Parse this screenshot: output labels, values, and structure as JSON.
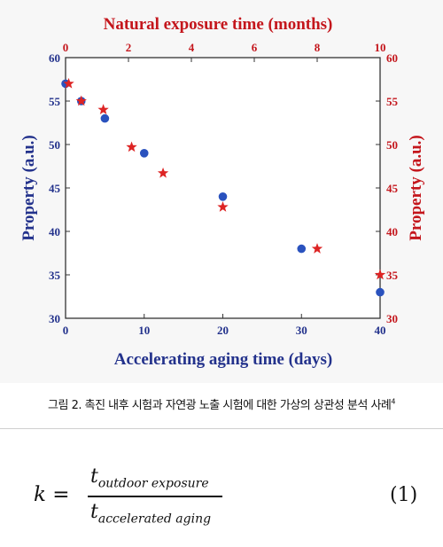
{
  "chart_data": {
    "type": "scatter",
    "title": "Natural exposure time (months)",
    "xlabel": "Accelerating aging time (days)",
    "ylabel": "Property (a.u.)",
    "y2label": "Property (a.u.)",
    "xlim": [
      0,
      40
    ],
    "ylim": [
      30,
      60
    ],
    "x2lim": [
      0,
      10
    ],
    "x_ticks": [
      "0",
      "10",
      "20",
      "30",
      "40"
    ],
    "x2_ticks": [
      "0",
      "2",
      "4",
      "6",
      "8",
      "10"
    ],
    "y_ticks": [
      "30",
      "35",
      "40",
      "45",
      "50",
      "55",
      "60"
    ],
    "y2_ticks": [
      "30",
      "35",
      "40",
      "45",
      "50",
      "55",
      "60"
    ],
    "grid": false,
    "series": [
      {
        "marker": "circle",
        "color": "#2a52be",
        "axis": "bottom-left",
        "points": [
          [
            0,
            57
          ],
          [
            2,
            55
          ],
          [
            5,
            53
          ],
          [
            10,
            49
          ],
          [
            20,
            44
          ],
          [
            30,
            38
          ],
          [
            40,
            33
          ]
        ]
      },
      {
        "marker": "star",
        "color": "#dd2424",
        "axis": "top-right",
        "points": [
          [
            0.1,
            57
          ],
          [
            0.5,
            55
          ],
          [
            1.2,
            54
          ],
          [
            2.1,
            49.7
          ],
          [
            3.1,
            46.7
          ],
          [
            5.0,
            42.8
          ],
          [
            8.0,
            38
          ],
          [
            10,
            35
          ]
        ]
      }
    ]
  },
  "caption": {
    "text": "그림 2. 촉진 내후 시험과 자연광 노출 시험에 대한 가상의 상관성 분석 사례",
    "ref": "4"
  },
  "equation": {
    "lhs": "k =",
    "num_t": "t",
    "num_sub": "outdoor exposure",
    "den_t": "t",
    "den_sub": "accelerated aging",
    "number": "(1)"
  },
  "colors": {
    "blue": "#2a52be",
    "red": "#dd2424",
    "navy": "#23328c",
    "darkred": "#c4161c"
  }
}
